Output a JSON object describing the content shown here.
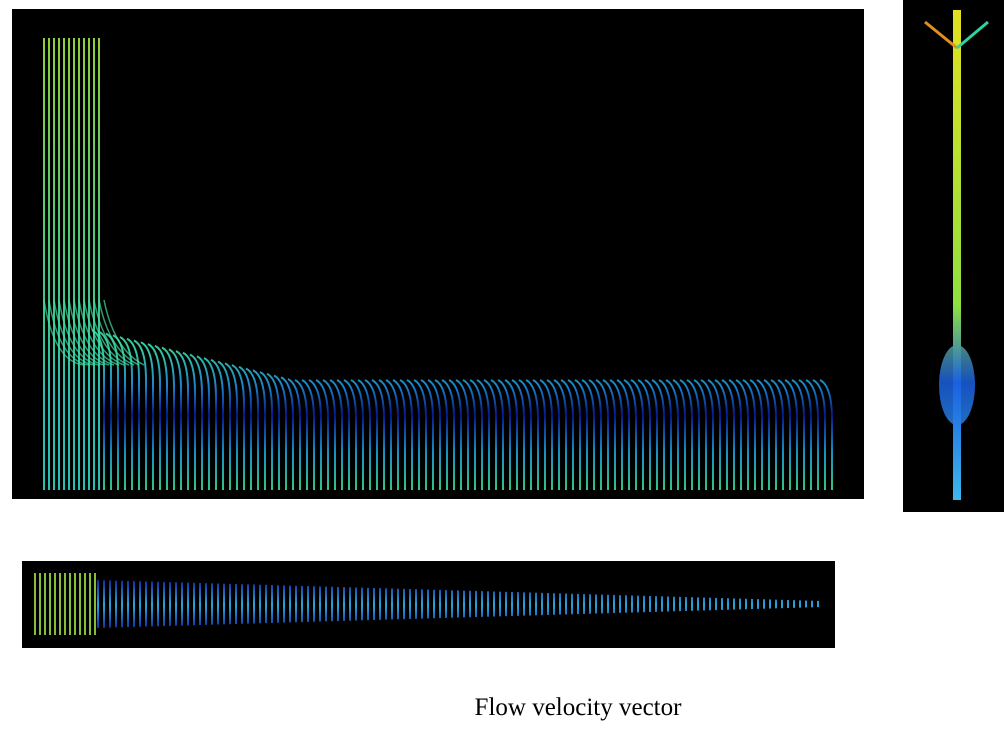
{
  "caption": "Flow velocity vector"
}
